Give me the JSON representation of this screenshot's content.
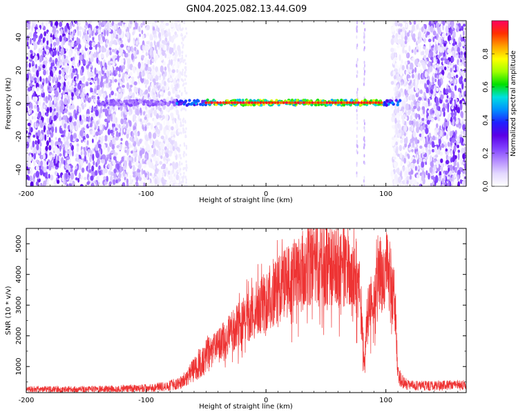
{
  "figure": {
    "title": "GN04.2025.082.13.44.G09"
  },
  "colorbar": {
    "label": "Normalized spectral amplitude",
    "range": [
      0,
      1
    ],
    "ticks": [
      "0.0",
      "0.2",
      "0.4",
      "0.6",
      "0.8"
    ],
    "tick_values": [
      0.0,
      0.2,
      0.4,
      0.6,
      0.8
    ],
    "colors": [
      "#ffffff",
      "#e3d8ff",
      "#b58cff",
      "#8040ff",
      "#5a00e6",
      "#2020ff",
      "#0090ff",
      "#00e0e0",
      "#00e000",
      "#a0ff00",
      "#ffff00",
      "#ffa000",
      "#ff3000",
      "#ff0060"
    ]
  },
  "chart_data": [
    {
      "type": "heatmap",
      "title": "GN04.2025.082.13.44.G09",
      "xlabel": "Height of straight line (km)",
      "ylabel": "Frequency (Hz)",
      "xlim": [
        -200,
        167
      ],
      "ylim": [
        -50,
        50
      ],
      "xticks": [
        -200,
        -100,
        0,
        100
      ],
      "yticks": [
        -40,
        -20,
        0,
        20,
        40
      ],
      "xtick_labels": [
        "-200",
        "-100",
        "0",
        "100"
      ],
      "ytick_labels": [
        "-40",
        "-20",
        "0",
        "20",
        "40"
      ],
      "noise_regions_km": [
        [
          -200,
          -72
        ],
        [
          105,
          167
        ]
      ],
      "signal_band": {
        "x_range_km": [
          -140,
          112
        ],
        "frequency_hz": 0.5,
        "peak_amplitude_range_km": [
          -50,
          98
        ]
      },
      "vertical_lines_km": [
        76,
        82
      ],
      "colorbar_label": "Normalized spectral amplitude"
    },
    {
      "type": "line",
      "xlabel": "Height of straight line (km)",
      "ylabel": "SNR (10 * v/v)",
      "xlim": [
        -200,
        167
      ],
      "ylim": [
        150,
        5500
      ],
      "xticks": [
        -200,
        -100,
        0,
        100
      ],
      "yticks": [
        1000,
        2000,
        3000,
        4000,
        5000
      ],
      "xtick_labels": [
        "-200",
        "-100",
        "0",
        "100"
      ],
      "ytick_labels": [
        "1000",
        "2000",
        "3000",
        "4000",
        "5000"
      ],
      "color": "#ee3333",
      "series": [
        {
          "x": [
            -200,
            -180,
            -160,
            -140,
            -120,
            -100,
            -90,
            -80,
            -70,
            -65,
            -60,
            -55,
            -50,
            -45,
            -40,
            -35,
            -30,
            -25,
            -20,
            -15,
            -10,
            -5,
            0,
            5,
            10,
            15,
            20,
            25,
            30,
            35,
            40,
            45,
            50,
            55,
            60,
            65,
            70,
            75,
            78,
            80,
            82,
            84,
            87,
            90,
            95,
            100,
            103,
            106,
            108,
            110,
            115,
            120,
            130,
            140,
            150,
            160,
            167
          ],
          "values": [
            250,
            250,
            250,
            260,
            280,
            300,
            330,
            380,
            500,
            700,
            900,
            1150,
            1350,
            1500,
            1700,
            1900,
            2050,
            2250,
            2450,
            2600,
            2800,
            2950,
            3100,
            3300,
            3500,
            3700,
            3800,
            3950,
            4100,
            4200,
            4300,
            4350,
            4350,
            4300,
            4250,
            4200,
            4100,
            4000,
            3500,
            2500,
            1000,
            2300,
            3000,
            3100,
            4000,
            4100,
            4000,
            3500,
            3000,
            700,
            450,
            380,
            370,
            370,
            380,
            390,
            400
          ]
        }
      ]
    }
  ]
}
